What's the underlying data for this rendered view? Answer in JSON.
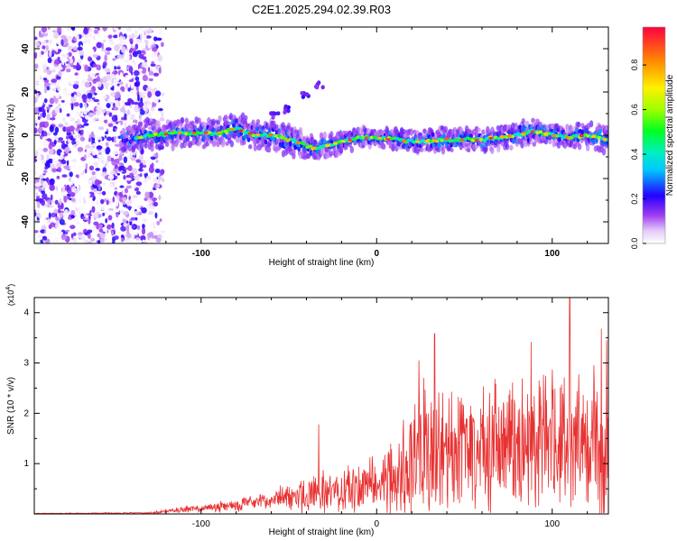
{
  "figure_title": "C2E1.2025.294.02.39.R03",
  "chart_data": [
    {
      "type": "heatmap",
      "title": "C2E1.2025.294.02.39.R03",
      "xlabel": "Height of straight line (km)",
      "ylabel": "Frequency (Hz)",
      "xlim": [
        -195,
        132
      ],
      "ylim": [
        -50,
        50
      ],
      "x_ticks": [
        -100,
        0,
        100
      ],
      "y_ticks": [
        -40,
        -20,
        0,
        20,
        40
      ],
      "colorbar": {
        "label": "Normalized spectral amplitude",
        "range": [
          0,
          0.97
        ],
        "ticks": [
          0.0,
          0.2,
          0.4,
          0.6,
          0.8
        ]
      },
      "noise_region_x": [
        -195,
        -128
      ],
      "ridge": {
        "x": [
          -145,
          -130,
          -110,
          -90,
          -80,
          -70,
          -60,
          -50,
          -40,
          -35,
          -30,
          -20,
          -10,
          0,
          20,
          40,
          60,
          80,
          90,
          100,
          110,
          120,
          132
        ],
        "freq": [
          -2,
          0,
          1,
          1,
          3,
          0,
          0,
          -2,
          -5,
          -6,
          -5,
          -3,
          -1,
          -1,
          -3,
          -2,
          -2,
          0,
          2,
          0,
          -1,
          0,
          -2
        ],
        "width_hz": [
          6,
          8,
          7,
          8,
          9,
          8,
          8,
          8,
          7,
          6,
          7,
          6,
          5,
          5,
          6,
          6,
          6,
          7,
          7,
          6,
          6,
          7,
          8
        ]
      },
      "echoes": [
        {
          "x": -52,
          "freq": 12
        },
        {
          "x": -58,
          "freq": 9
        },
        {
          "x": -40,
          "freq": 18
        },
        {
          "x": -33,
          "freq": 23
        }
      ]
    },
    {
      "type": "line",
      "xlabel": "Height of straight line (km)",
      "ylabel": "SNR (10 * v/v)",
      "y_multiplier": "(x10 4)",
      "y_multiplier_base": "(x10",
      "y_multiplier_exp": "4",
      "y_multiplier_close": ")",
      "xlim": [
        -195,
        132
      ],
      "ylim": [
        0,
        4.3
      ],
      "x_ticks": [
        -100,
        0,
        100
      ],
      "y_ticks": [
        1,
        2,
        3,
        4
      ],
      "color": "#e83232",
      "envelope_x": [
        -195,
        -130,
        -120,
        -100,
        -80,
        -60,
        -50,
        -40,
        -30,
        -20,
        -10,
        0,
        10,
        20,
        30,
        40,
        60,
        80,
        100,
        110,
        120,
        132
      ],
      "envelope_base": [
        0.01,
        0.02,
        0.05,
        0.12,
        0.18,
        0.28,
        0.35,
        0.4,
        0.4,
        0.45,
        0.55,
        0.65,
        0.8,
        1.1,
        1.2,
        1.25,
        1.3,
        1.3,
        1.35,
        1.4,
        1.4,
        1.3
      ],
      "envelope_amp": [
        0.005,
        0.02,
        0.05,
        0.1,
        0.15,
        0.2,
        0.3,
        0.45,
        0.5,
        0.55,
        0.6,
        0.7,
        1.0,
        1.4,
        1.7,
        1.7,
        1.6,
        1.7,
        1.8,
        1.9,
        1.8,
        1.7
      ],
      "peaks": [
        {
          "x": -33,
          "y": 1.78
        },
        {
          "x": 24,
          "y": 3.05
        },
        {
          "x": 33,
          "y": 3.58
        },
        {
          "x": 88,
          "y": 3.42
        },
        {
          "x": 110,
          "y": 4.3
        },
        {
          "x": 128,
          "y": 3.68
        },
        {
          "x": 131,
          "y": 3.45
        }
      ]
    }
  ]
}
